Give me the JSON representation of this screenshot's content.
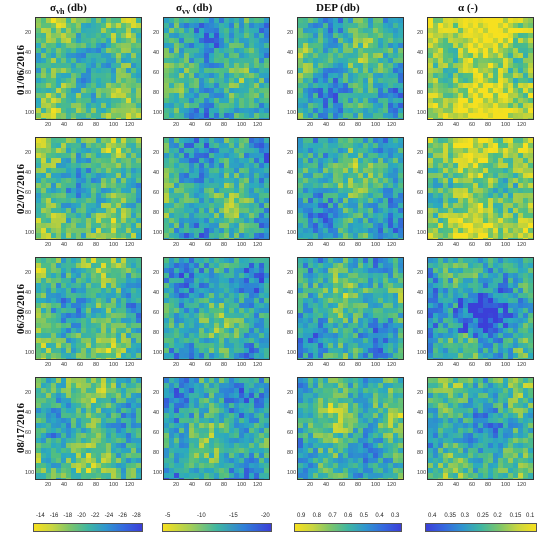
{
  "columns": [
    {
      "sym": "σ",
      "sub": "vh",
      "unit": " (db)"
    },
    {
      "sym": "σ",
      "sub": "vv",
      "unit": " (db)"
    },
    {
      "sym": "DEP",
      "sub": "",
      "unit": " (db)"
    },
    {
      "sym": "α",
      "sub": "",
      "unit": " (-)"
    }
  ],
  "rows": [
    "01/06/2016",
    "02/07/2016",
    "06/30/2016",
    "08/17/2016"
  ],
  "y_ticks": [
    "20",
    "40",
    "60",
    "80",
    "100"
  ],
  "x_ticks": [
    "20",
    "40",
    "60",
    "80",
    "100",
    "120"
  ],
  "colorbars": [
    {
      "labels": [
        "-14",
        "-16",
        "-18",
        "-20",
        "-22",
        "-24",
        "-26",
        "-28"
      ]
    },
    {
      "labels": [
        "-5",
        "-10",
        "-15",
        "-20"
      ]
    },
    {
      "labels": [
        "0.9",
        "0.8",
        "0.7",
        "0.6",
        "0.5",
        "0.4",
        "0.3"
      ]
    },
    {
      "labels": [
        "0.4",
        "0.35",
        "0.3",
        "0.25",
        "0.2",
        "0.15",
        "0.1"
      ]
    }
  ],
  "colors": {
    "low": "#2a3bd6",
    "mid": "#2bb8a0",
    "high": "#f2d42a"
  }
}
